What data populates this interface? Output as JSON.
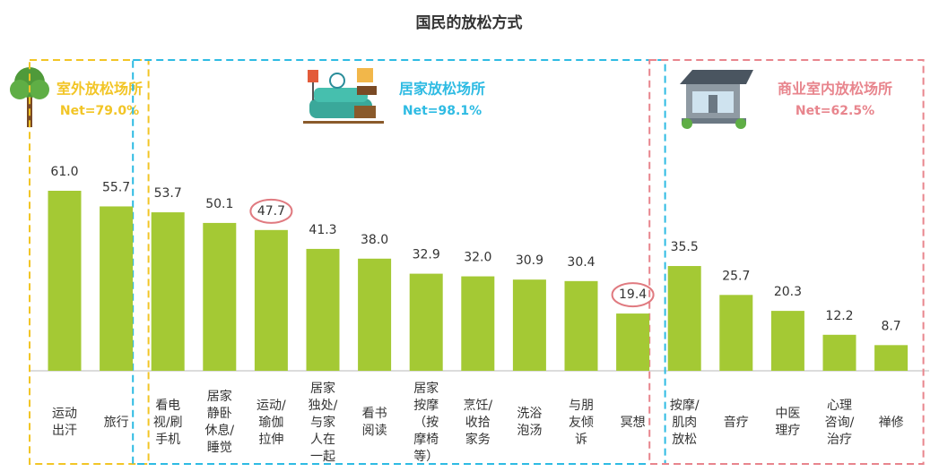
{
  "chart_data": {
    "type": "bar",
    "title": "国民的放松方式",
    "categories": [
      "运动\n出汗",
      "旅行",
      "看电\n视/刷\n手机",
      "居家\n静卧\n休息/\n睡觉",
      "运动/\n瑜伽\n拉伸",
      "居家\n独处/\n与家\n人在\n一起",
      "看书\n阅读",
      "居家\n按摩\n（按\n摩椅\n等）",
      "烹饪/\n收拾\n家务",
      "洗浴\n泡汤",
      "与朋\n友倾\n诉",
      "冥想",
      "按摩/\n肌肉\n放松",
      "音疗",
      "中医\n理疗",
      "心理\n咨询/\n治疗",
      "禅修"
    ],
    "values": [
      61.0,
      55.7,
      53.7,
      50.1,
      47.7,
      41.3,
      38.0,
      32.9,
      32.0,
      30.9,
      30.4,
      19.4,
      35.5,
      25.7,
      20.3,
      12.2,
      8.7
    ],
    "value_labels": [
      "61.0",
      "55.7",
      "53.7",
      "50.1",
      "47.7",
      "41.3",
      "38.0",
      "32.9",
      "32.0",
      "30.9",
      "30.4",
      "19.4",
      "35.5",
      "25.7",
      "20.3",
      "12.2",
      "8.7"
    ],
    "color": "#a4c934",
    "highlighted": [
      4,
      11
    ],
    "highlight_color": "#e07a80",
    "groups": [
      {
        "name": "室外放松场所",
        "net": "Net=79.0%",
        "start": 0,
        "end": 1,
        "color": "#f2c526"
      },
      {
        "name": "居家放松场所",
        "net": "Net=98.1%",
        "start": 2,
        "end": 11,
        "color": "#2ebbe3"
      },
      {
        "name": "商业室内放松场所",
        "net": "Net=62.5%",
        "start": 12,
        "end": 16,
        "color": "#e8858d"
      }
    ]
  }
}
